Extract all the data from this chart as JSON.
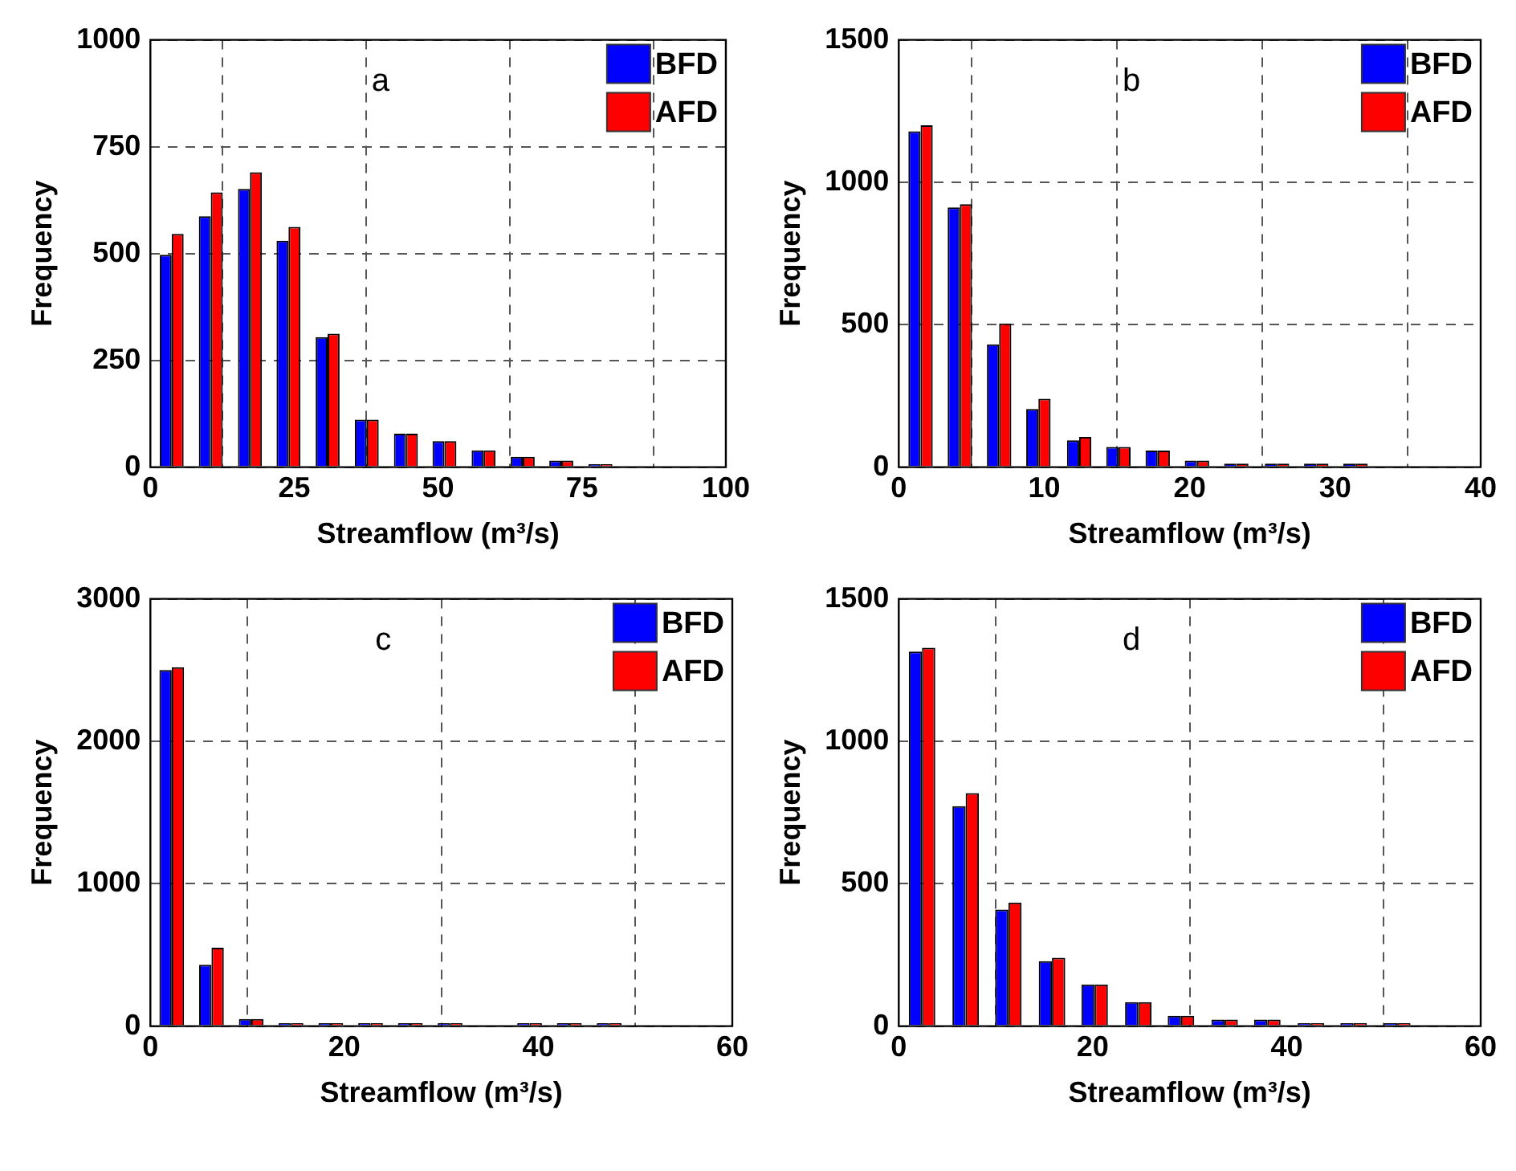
{
  "chart_data": [
    {
      "type": "bar",
      "xlabel": "Streamflow (m³/s)",
      "ylabel": "Frequency",
      "annotations": [
        "a"
      ],
      "x": [
        3.7,
        10.5,
        17.3,
        24.0,
        30.8,
        37.6,
        44.4,
        51.1,
        57.9,
        64.7,
        71.4,
        78.2
      ],
      "series": [
        {
          "name": "BFD",
          "color": "#0000ff",
          "values": [
            497,
            587,
            651,
            530,
            304,
            111,
            78,
            61,
            39,
            24,
            15,
            7
          ]
        },
        {
          "name": "AFD",
          "color": "#ff0000",
          "values": [
            546,
            643,
            690,
            562,
            312,
            111,
            78,
            61,
            39,
            24,
            15,
            7
          ]
        }
      ],
      "xlim": [
        0,
        100
      ],
      "xticks": [
        0,
        25,
        50,
        75,
        100
      ],
      "ylim": [
        0,
        1000
      ],
      "yticks": [
        0,
        250,
        500,
        750,
        1000
      ],
      "grid": true,
      "legend": "top right"
    },
    {
      "type": "bar",
      "xlabel": "Streamflow (m³/s)",
      "ylabel": "Frequency",
      "annotations": [
        "b"
      ],
      "x": [
        1.5,
        4.2,
        6.9,
        9.6,
        12.4,
        15.1,
        17.8,
        20.5,
        23.2,
        26.0,
        28.7,
        31.4
      ],
      "series": [
        {
          "name": "BFD",
          "color": "#0000ff",
          "values": [
            1179,
            912,
            431,
            204,
            94,
            71,
            58,
            23,
            12,
            12,
            12,
            12
          ]
        },
        {
          "name": "AFD",
          "color": "#ff0000",
          "values": [
            1200,
            923,
            504,
            240,
            106,
            71,
            58,
            23,
            12,
            12,
            12,
            12
          ]
        }
      ],
      "xlim": [
        0,
        40
      ],
      "xticks": [
        0,
        10,
        20,
        30,
        40
      ],
      "ylim": [
        0,
        1500
      ],
      "yticks": [
        0,
        500,
        1000,
        1500
      ],
      "grid": true,
      "legend": "top right"
    },
    {
      "type": "bar",
      "xlabel": "Streamflow (m³/s)",
      "ylabel": "Frequency",
      "annotations": [
        "c"
      ],
      "x": [
        2.2,
        6.3,
        10.4,
        14.5,
        18.6,
        22.7,
        26.8,
        30.9,
        35.0,
        39.1,
        43.2,
        47.3
      ],
      "series": [
        {
          "name": "BFD",
          "color": "#0000ff",
          "values": [
            2500,
            430,
            50,
            20,
            20,
            20,
            20,
            20,
            0,
            20,
            20,
            20
          ]
        },
        {
          "name": "AFD",
          "color": "#ff0000",
          "values": [
            2520,
            550,
            50,
            20,
            20,
            20,
            20,
            20,
            0,
            20,
            20,
            20
          ]
        }
      ],
      "xlim": [
        0,
        60
      ],
      "xticks": [
        0,
        20,
        40,
        60
      ],
      "ylim": [
        0,
        3000
      ],
      "yticks": [
        0,
        1000,
        2000,
        3000
      ],
      "grid": true,
      "legend": "top right"
    },
    {
      "type": "bar",
      "xlabel": "Streamflow (m³/s)",
      "ylabel": "Frequency",
      "annotations": [
        "d"
      ],
      "x": [
        2.4,
        6.9,
        11.3,
        15.8,
        20.2,
        24.7,
        29.1,
        33.6,
        38.0,
        42.5,
        46.9,
        51.4
      ],
      "series": [
        {
          "name": "BFD",
          "color": "#0000ff",
          "values": [
            1315,
            772,
            409,
            228,
            146,
            84,
            36,
            23,
            23,
            10,
            10,
            10
          ]
        },
        {
          "name": "AFD",
          "color": "#ff0000",
          "values": [
            1328,
            818,
            434,
            240,
            146,
            84,
            36,
            23,
            23,
            10,
            10,
            10
          ]
        }
      ],
      "xlim": [
        0,
        60
      ],
      "xticks": [
        0,
        20,
        40,
        60
      ],
      "ylim": [
        0,
        1500
      ],
      "yticks": [
        0,
        500,
        1000,
        1500
      ],
      "grid": true,
      "legend": "top right"
    }
  ]
}
